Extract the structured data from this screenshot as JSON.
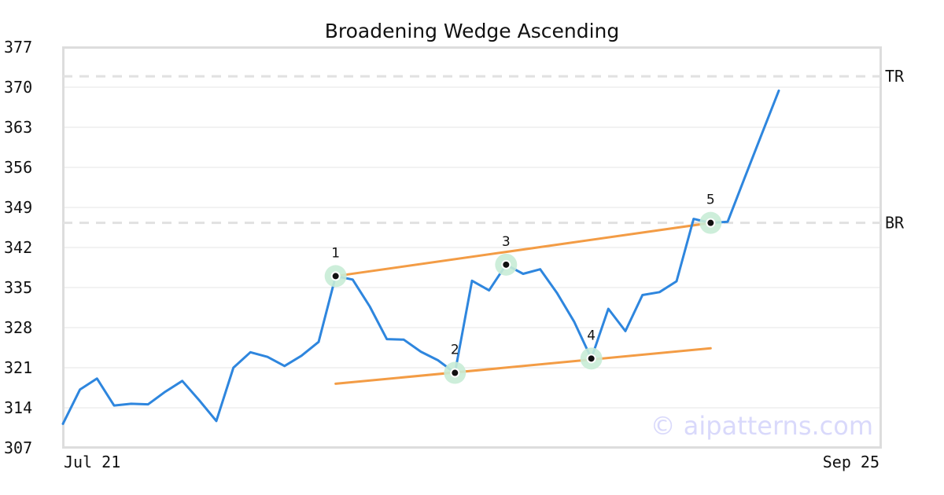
{
  "chart_data": {
    "type": "line",
    "title": "Broadening Wedge Ascending",
    "xlabel": "",
    "ylabel": "",
    "x_tick_labels": [
      "Jul 21",
      "Sep 25"
    ],
    "y_ticks": [
      307,
      314,
      321,
      328,
      335,
      342,
      349,
      356,
      363,
      370,
      377
    ],
    "ylim": [
      307,
      377
    ],
    "grid": "horizontal",
    "series": [
      {
        "color": "#2e86de",
        "values": [
          311.2,
          317.2,
          319.1,
          314.4,
          314.7,
          314.6,
          316.8,
          318.7,
          315.3,
          311.7,
          321.0,
          323.7,
          322.9,
          321.3,
          323.1,
          325.5,
          337.0,
          336.4,
          331.7,
          326.0,
          325.9,
          323.8,
          322.3,
          320.1,
          336.2,
          334.5,
          339.0,
          337.4,
          338.2,
          334.0,
          329.0,
          322.6,
          331.3,
          327.4,
          333.7,
          334.2,
          336.1,
          347.0,
          346.3,
          346.5,
          354.2,
          361.8,
          369.4
        ]
      }
    ],
    "pivots": [
      {
        "label": "1",
        "index": 16,
        "value": 337.0
      },
      {
        "label": "2",
        "index": 23,
        "value": 320.1
      },
      {
        "label": "3",
        "index": 26,
        "value": 339.0
      },
      {
        "label": "4",
        "index": 31,
        "value": 322.6
      },
      {
        "label": "5",
        "index": 38,
        "value": 346.3
      }
    ],
    "trendlines": [
      {
        "name": "upper",
        "color": "#f39c45",
        "from_index": 16,
        "from_value": 337.0,
        "to_index": 38,
        "to_value": 346.3
      },
      {
        "name": "lower",
        "color": "#f39c45",
        "from_index": 16,
        "from_value": 318.2,
        "to_index": 38,
        "to_value": 324.4
      }
    ],
    "reference_lines": [
      {
        "label": "TR",
        "value": 371.9
      },
      {
        "label": "BR",
        "value": 346.3
      }
    ],
    "watermark": "© aipatterns.com",
    "colors": {
      "line": "#2e86de",
      "trendline": "#f39c45",
      "pivot_halo": "#c8ecd6",
      "reference": "#e1e1e1",
      "grid": "#e6e6e6",
      "frame": "#dddddd"
    }
  }
}
